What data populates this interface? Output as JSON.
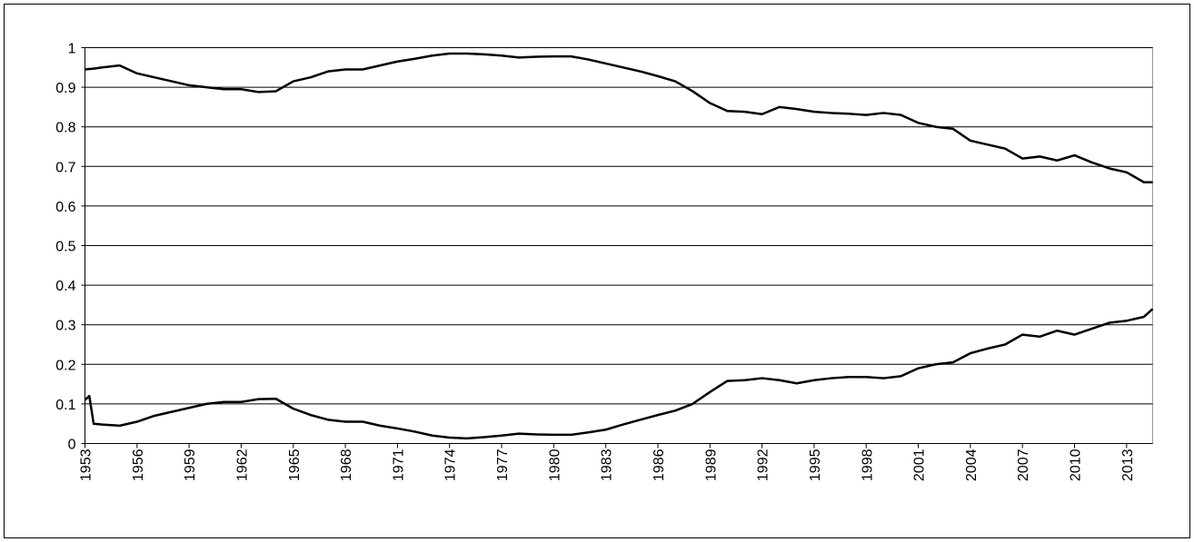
{
  "chart_data": {
    "type": "line",
    "x": [
      1953,
      1953.25,
      1953.5,
      1954,
      1955,
      1956,
      1957,
      1958,
      1959,
      1960,
      1961,
      1962,
      1963,
      1964,
      1965,
      1966,
      1967,
      1968,
      1969,
      1970,
      1971,
      1972,
      1973,
      1974,
      1975,
      1976,
      1977,
      1978,
      1979,
      1980,
      1981,
      1982,
      1983,
      1984,
      1985,
      1986,
      1987,
      1988,
      1989,
      1990,
      1991,
      1992,
      1993,
      1994,
      1995,
      1996,
      1997,
      1998,
      1999,
      2000,
      2001,
      2002,
      2003,
      2004,
      2005,
      2006,
      2007,
      2008,
      2009,
      2010,
      2011,
      2012,
      2013,
      2014,
      2014.5
    ],
    "series": [
      {
        "color": "#000000",
        "values": [
          0.945,
          0.946,
          0.947,
          0.95,
          0.955,
          0.935,
          0.925,
          0.915,
          0.905,
          0.9,
          0.895,
          0.895,
          0.888,
          0.89,
          0.915,
          0.925,
          0.94,
          0.945,
          0.945,
          0.955,
          0.965,
          0.972,
          0.98,
          0.985,
          0.985,
          0.983,
          0.98,
          0.975,
          0.977,
          0.978,
          0.978,
          0.97,
          0.96,
          0.95,
          0.94,
          0.928,
          0.915,
          0.89,
          0.86,
          0.84,
          0.838,
          0.832,
          0.85,
          0.845,
          0.838,
          0.835,
          0.833,
          0.83,
          0.835,
          0.83,
          0.81,
          0.8,
          0.795,
          0.765,
          0.755,
          0.745,
          0.72,
          0.725,
          0.715,
          0.728,
          0.71,
          0.695,
          0.685,
          0.66,
          0.66
        ]
      },
      {
        "color": "#000000",
        "values": [
          0.11,
          0.12,
          0.05,
          0.048,
          0.045,
          0.055,
          0.07,
          0.08,
          0.09,
          0.1,
          0.105,
          0.105,
          0.112,
          0.113,
          0.088,
          0.072,
          0.06,
          0.055,
          0.055,
          0.045,
          0.038,
          0.03,
          0.02,
          0.015,
          0.013,
          0.016,
          0.02,
          0.025,
          0.023,
          0.022,
          0.022,
          0.028,
          0.035,
          0.048,
          0.06,
          0.072,
          0.083,
          0.1,
          0.13,
          0.158,
          0.16,
          0.165,
          0.16,
          0.152,
          0.16,
          0.165,
          0.168,
          0.168,
          0.165,
          0.17,
          0.19,
          0.2,
          0.205,
          0.228,
          0.24,
          0.25,
          0.275,
          0.27,
          0.285,
          0.275,
          0.29,
          0.305,
          0.31,
          0.32,
          0.34
        ]
      }
    ],
    "xlim": [
      1953,
      2014.5
    ],
    "xticks": [
      1953,
      1956,
      1959,
      1962,
      1965,
      1968,
      1971,
      1974,
      1977,
      1980,
      1983,
      1986,
      1989,
      1992,
      1995,
      1998,
      2001,
      2004,
      2007,
      2010,
      2013
    ],
    "ylim": [
      0,
      1
    ],
    "yticks": [
      0,
      0.1,
      0.2,
      0.3,
      0.4,
      0.5,
      0.6,
      0.7,
      0.8,
      0.9,
      1
    ],
    "grid": true
  }
}
